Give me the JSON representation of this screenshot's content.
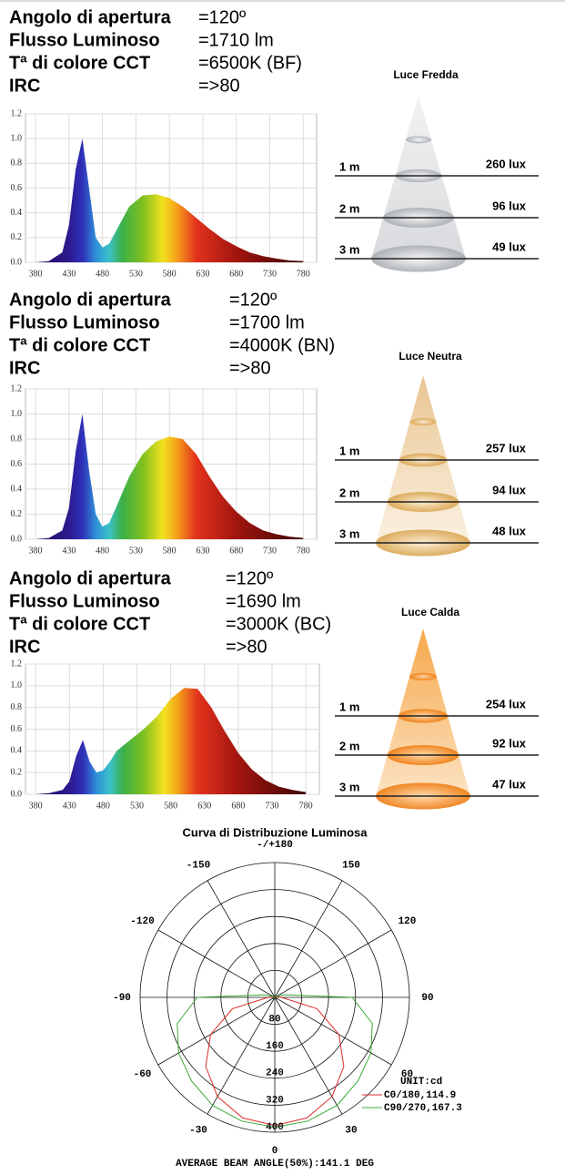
{
  "sections": [
    {
      "specs": [
        {
          "label": "Angolo di apertura",
          "value": "=120º"
        },
        {
          "label": "Flusso Luminoso",
          "value": "=1710 lm"
        },
        {
          "label": "Tª di colore CCT",
          "value": "=6500K (BF)"
        },
        {
          "label": "IRC",
          "value": "=>80"
        }
      ],
      "spectrum": {
        "type": "area",
        "x": [
          380,
          400,
          420,
          430,
          440,
          450,
          460,
          470,
          480,
          490,
          500,
          520,
          540,
          560,
          580,
          600,
          620,
          640,
          660,
          680,
          700,
          720,
          740,
          760,
          780
        ],
        "values": [
          0,
          0.01,
          0.08,
          0.3,
          0.75,
          1.0,
          0.6,
          0.2,
          0.12,
          0.15,
          0.25,
          0.45,
          0.54,
          0.55,
          0.52,
          0.45,
          0.36,
          0.27,
          0.19,
          0.13,
          0.08,
          0.05,
          0.03,
          0.015,
          0.01
        ],
        "xlim": [
          365,
          800
        ],
        "xticks": [
          380,
          430,
          480,
          530,
          580,
          630,
          680,
          730,
          780
        ],
        "ylim": [
          0,
          1.2
        ],
        "yticks": [
          {
            "value": 0,
            "label": "0.0"
          },
          0.2,
          0.4,
          0.6,
          0.8,
          {
            "value": 1,
            "label": "1.0"
          },
          1.2
        ],
        "grid": true
      },
      "cone": {
        "title": "Luce Fredda",
        "rows": [
          {
            "distance": "1 m",
            "lux": "260 lux"
          },
          {
            "distance": "2 m",
            "lux": "96 lux"
          },
          {
            "distance": "3 m",
            "lux": "49 lux"
          }
        ]
      }
    },
    {
      "specs": [
        {
          "label": "Angolo di apertura",
          "value": "=120º"
        },
        {
          "label": "Flusso Luminoso",
          "value": "=1700 lm"
        },
        {
          "label": "Tª di colore CCT",
          "value": "=4000K  (BN)"
        },
        {
          "label": "IRC",
          "value": "=>80"
        }
      ],
      "spectrum": {
        "type": "area",
        "x": [
          380,
          400,
          420,
          430,
          440,
          450,
          460,
          470,
          480,
          490,
          500,
          520,
          540,
          560,
          580,
          600,
          620,
          640,
          660,
          680,
          700,
          720,
          740,
          760,
          780
        ],
        "values": [
          0,
          0.01,
          0.07,
          0.25,
          0.7,
          1.0,
          0.55,
          0.2,
          0.1,
          0.13,
          0.25,
          0.5,
          0.68,
          0.78,
          0.82,
          0.8,
          0.68,
          0.5,
          0.34,
          0.22,
          0.13,
          0.07,
          0.04,
          0.02,
          0.01
        ],
        "xlim": [
          365,
          800
        ],
        "xticks": [
          380,
          430,
          480,
          530,
          580,
          630,
          680,
          730,
          780
        ],
        "ylim": [
          0,
          1.2
        ],
        "yticks": [
          {
            "value": 0,
            "label": "0.0"
          },
          0.2,
          0.4,
          0.6,
          0.8,
          {
            "value": 1,
            "label": "1.0"
          },
          1.2
        ],
        "grid": true
      },
      "cone": {
        "title": "Luce Neutra",
        "rows": [
          {
            "distance": "1 m",
            "lux": "257 lux"
          },
          {
            "distance": "2 m",
            "lux": "94 lux"
          },
          {
            "distance": "3 m",
            "lux": "48 lux"
          }
        ]
      }
    },
    {
      "specs": [
        {
          "label": "Angolo di apertura",
          "value": "=120º"
        },
        {
          "label": "Flusso Luminoso",
          "value": "=1690 lm"
        },
        {
          "label": "Tª di colore CCT",
          "value": "=3000K  (BC)"
        },
        {
          "label": "IRC",
          "value": "=>80"
        }
      ],
      "spectrum": {
        "type": "area",
        "x": [
          380,
          400,
          420,
          430,
          440,
          450,
          460,
          470,
          480,
          490,
          500,
          520,
          540,
          560,
          580,
          600,
          620,
          640,
          660,
          680,
          700,
          720,
          740,
          760,
          780
        ],
        "values": [
          0,
          0.01,
          0.04,
          0.12,
          0.35,
          0.5,
          0.3,
          0.2,
          0.22,
          0.3,
          0.4,
          0.5,
          0.6,
          0.72,
          0.88,
          0.98,
          0.97,
          0.8,
          0.58,
          0.38,
          0.23,
          0.13,
          0.07,
          0.04,
          0.02
        ],
        "xlim": [
          365,
          800
        ],
        "xticks": [
          380,
          430,
          480,
          530,
          580,
          630,
          680,
          730,
          780
        ],
        "ylim": [
          0,
          1.2
        ],
        "yticks": [
          {
            "value": 0,
            "label": "0.0"
          },
          0.2,
          0.4,
          0.6,
          0.8,
          {
            "value": 1,
            "label": "1.0"
          },
          1.2
        ],
        "grid": true
      },
      "cone": {
        "title": "Luce Calda",
        "rows": [
          {
            "distance": "1 m",
            "lux": "254 lux"
          },
          {
            "distance": "2 m",
            "lux": "92 lux"
          },
          {
            "distance": "3 m",
            "lux": "47 lux"
          }
        ]
      }
    }
  ],
  "polar": {
    "type": "polar",
    "title": "Curva di Distribuzione Luminosa",
    "theta": [
      -180,
      -150,
      -120,
      -105,
      -90,
      -75,
      -60,
      -45,
      -30,
      -15,
      0,
      15,
      30,
      45,
      60,
      75,
      90,
      105,
      120,
      150,
      180
    ],
    "series": [
      {
        "name": "C0/180,114.9",
        "color": "#e02a2a",
        "values": [
          0,
          0,
          0,
          5,
          20,
          130,
          220,
          290,
          340,
          370,
          380,
          370,
          340,
          290,
          220,
          130,
          20,
          5,
          0,
          0,
          0
        ]
      },
      {
        "name": "C90/270,167.3",
        "color": "#3aaa35",
        "values": [
          0,
          0,
          5,
          30,
          230,
          300,
          330,
          350,
          370,
          380,
          385,
          380,
          370,
          350,
          330,
          300,
          230,
          30,
          5,
          0,
          0
        ]
      }
    ],
    "rlim": [
      0,
      400
    ],
    "rticks": [
      80,
      160,
      240,
      320,
      400
    ],
    "thetaticks": [
      {
        "value": 180,
        "label": "-/+180"
      },
      -150,
      150,
      -120,
      120,
      -90,
      90,
      -60,
      60,
      -30,
      30,
      0
    ],
    "unit": "UNIT:cd",
    "footer": "AVERAGE BEAM ANGLE(50%):141.1 DEG"
  }
}
